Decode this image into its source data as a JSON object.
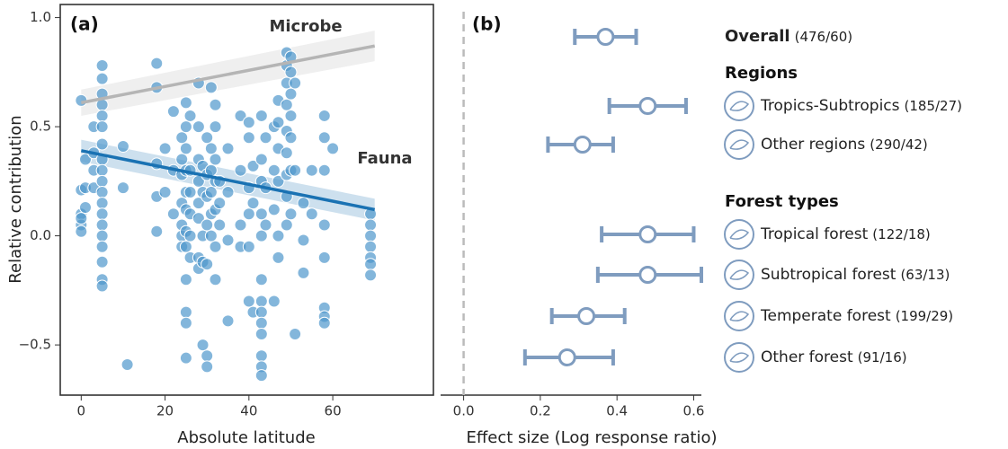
{
  "chart_data": [
    {
      "type": "scatter",
      "label": "(a)",
      "xlabel": "Absolute latitude",
      "ylabel": "Relative contribution",
      "color": "#4f97cc",
      "x": [
        0,
        0,
        0,
        0,
        0,
        0,
        1,
        1,
        1,
        3,
        3,
        3,
        3,
        5,
        5,
        5,
        5,
        5,
        5,
        5,
        5,
        5,
        5,
        5,
        5,
        5,
        5,
        5,
        5,
        5,
        5,
        5,
        10,
        10,
        11,
        18,
        18,
        18,
        18,
        18,
        20,
        20,
        22,
        22,
        22,
        24,
        24,
        24,
        24,
        24,
        24,
        24,
        25,
        25,
        25,
        25,
        25,
        25,
        25,
        25,
        25,
        25,
        25,
        25,
        26,
        26,
        26,
        26,
        26,
        26,
        28,
        28,
        28,
        28,
        28,
        28,
        28,
        28,
        29,
        29,
        29,
        29,
        29,
        30,
        30,
        30,
        30,
        30,
        30,
        30,
        31,
        31,
        31,
        31,
        31,
        31,
        32,
        32,
        32,
        32,
        32,
        32,
        32,
        33,
        33,
        33,
        35,
        35,
        35,
        35,
        38,
        38,
        38,
        38,
        40,
        40,
        40,
        40,
        40,
        40,
        41,
        41,
        41,
        43,
        43,
        43,
        43,
        43,
        43,
        43,
        43,
        43,
        43,
        43,
        43,
        43,
        44,
        44,
        44,
        46,
        46,
        46,
        46,
        47,
        47,
        47,
        47,
        47,
        47,
        49,
        49,
        49,
        49,
        49,
        49,
        49,
        49,
        49,
        50,
        50,
        50,
        50,
        50,
        50,
        50,
        51,
        51,
        51,
        53,
        53,
        53,
        55,
        55,
        58,
        58,
        58,
        58,
        58,
        58,
        58,
        58,
        60,
        69,
        69,
        69,
        69,
        69,
        69,
        69
      ],
      "values": [
        0.62,
        0.21,
        0.1,
        0.05,
        0.02,
        0.08,
        0.22,
        0.35,
        0.13,
        0.5,
        0.3,
        0.22,
        0.38,
        0.78,
        0.72,
        0.65,
        0.6,
        0.55,
        0.5,
        0.42,
        0.35,
        0.3,
        0.25,
        0.2,
        0.15,
        0.1,
        0.05,
        0,
        -0.05,
        -0.12,
        -0.2,
        -0.23,
        0.41,
        0.22,
        -0.59,
        0.79,
        0.68,
        0.33,
        0.18,
        0.02,
        0.2,
        0.4,
        0.57,
        0.3,
        0.1,
        0.45,
        0.35,
        0.28,
        0.15,
        0.05,
        0,
        -0.05,
        0.61,
        0.5,
        0.4,
        0.3,
        0.2,
        0.12,
        0.02,
        -0.05,
        -0.2,
        -0.35,
        -0.4,
        -0.56,
        0.55,
        0.3,
        0.2,
        0.1,
        0,
        -0.1,
        0.7,
        0.5,
        0.35,
        0.25,
        0.15,
        0.08,
        -0.1,
        -0.15,
        0.32,
        0.2,
        0,
        -0.12,
        -0.5,
        0.45,
        0.28,
        0.18,
        0.05,
        -0.13,
        -0.55,
        -0.6,
        0.68,
        0.4,
        0.3,
        0.2,
        0.1,
        0,
        0.6,
        0.5,
        0.35,
        0.25,
        0.12,
        -0.05,
        -0.2,
        0.25,
        0.15,
        0.05,
        0.4,
        0.2,
        -0.02,
        -0.39,
        0.55,
        0.3,
        0.05,
        -0.05,
        0.52,
        0.45,
        0.22,
        0.1,
        -0.05,
        -0.3,
        0.32,
        0.15,
        -0.35,
        0.55,
        0.35,
        0.25,
        0.1,
        0,
        -0.2,
        -0.3,
        -0.35,
        -0.4,
        -0.45,
        -0.55,
        -0.6,
        -0.64,
        0.45,
        0.22,
        0.05,
        0.5,
        0.3,
        0.12,
        -0.3,
        0.62,
        0.52,
        0.4,
        0.25,
        0,
        -0.1,
        0.84,
        0.78,
        0.7,
        0.6,
        0.48,
        0.38,
        0.28,
        0.18,
        0.05,
        0.82,
        0.75,
        0.65,
        0.55,
        0.45,
        0.3,
        0.1,
        0.7,
        0.3,
        -0.45,
        0.15,
        -0.02,
        -0.17,
        0.3,
        0.1,
        0.55,
        0.45,
        0.3,
        0.05,
        -0.1,
        -0.33,
        -0.37,
        -0.4,
        0.4,
        0.1,
        0.05,
        0,
        -0.05,
        -0.1,
        -0.13,
        -0.18
      ],
      "xlim": [
        -5,
        84
      ],
      "ylim": [
        -0.73,
        1.06
      ],
      "xticks": [
        0,
        20,
        40,
        60
      ],
      "yticks": [
        {
          "value": -0.5,
          "label": "−0.5"
        },
        {
          "value": 0,
          "label": "0.0"
        },
        {
          "value": 0.5,
          "label": "0.5"
        },
        {
          "value": 1,
          "label": "1.0"
        }
      ],
      "fits": [
        {
          "name": "Microbe",
          "color": "#b5b5b5",
          "x": [
            0,
            70
          ],
          "y": [
            0.61,
            0.87
          ],
          "lower": [
            0.55,
            0.8
          ],
          "upper": [
            0.67,
            0.94
          ]
        },
        {
          "name": "Fauna",
          "color": "#1a72b3",
          "x": [
            0,
            70
          ],
          "y": [
            0.39,
            0.12
          ],
          "lower": [
            0.34,
            0.07
          ],
          "upper": [
            0.44,
            0.17
          ]
        }
      ]
    },
    {
      "type": "forest",
      "label": "(b)",
      "xlabel": "Effect size (Log response ratio)",
      "color": "#7f9cbf",
      "reference_line": 0,
      "xlim": [
        -0.06,
        0.62
      ],
      "xticks": [
        {
          "value": 0,
          "label": "0.0"
        },
        {
          "value": 0.2,
          "label": "0.2"
        },
        {
          "value": 0.4,
          "label": "0.4"
        },
        {
          "value": 0.6,
          "label": "0.6"
        }
      ],
      "headers": [
        "Regions",
        "Forest types"
      ],
      "rows": [
        {
          "name": "Overall",
          "n": "(476/60)",
          "value": 0.37,
          "ci": [
            0.29,
            0.45
          ]
        },
        {
          "name": "Tropics-Subtropics",
          "n": "(185/27)",
          "value": 0.48,
          "ci": [
            0.38,
            0.58
          ]
        },
        {
          "name": "Other regions",
          "n": "(290/42)",
          "value": 0.31,
          "ci": [
            0.22,
            0.39
          ]
        },
        {
          "name": "Tropical forest",
          "n": "(122/18)",
          "value": 0.48,
          "ci": [
            0.36,
            0.6
          ]
        },
        {
          "name": "Subtropical forest",
          "n": "(63/13)",
          "value": 0.48,
          "ci": [
            0.35,
            0.62
          ]
        },
        {
          "name": "Temperate forest",
          "n": "(199/29)",
          "value": 0.32,
          "ci": [
            0.23,
            0.42
          ]
        },
        {
          "name": "Other forest",
          "n": "(91/16)",
          "value": 0.27,
          "ci": [
            0.16,
            0.39
          ]
        }
      ]
    }
  ]
}
